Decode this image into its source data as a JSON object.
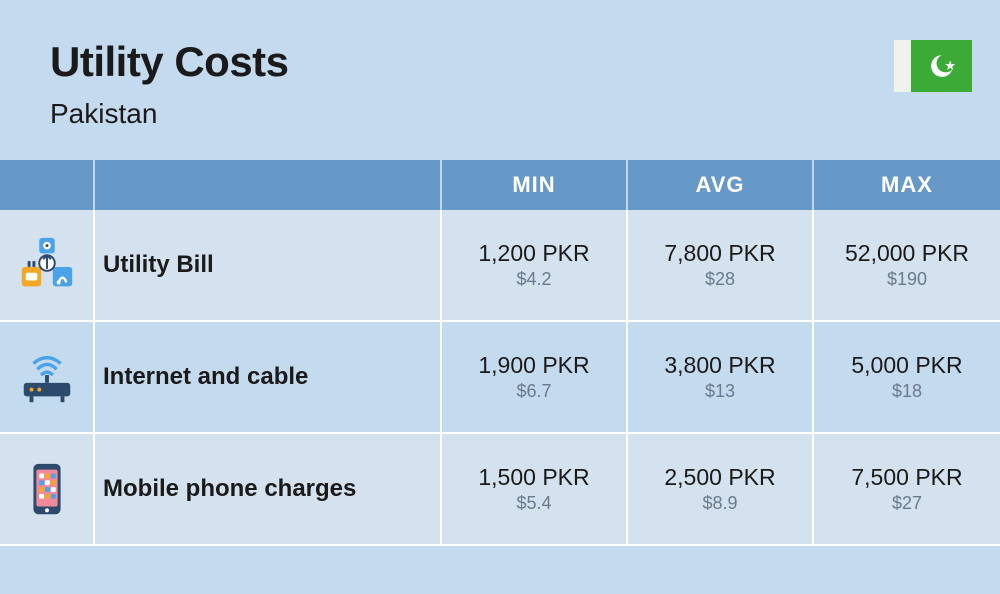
{
  "colors": {
    "page_bg": "#c4daee",
    "header_bg": "#c4daee",
    "thead_bg": "#6799c8",
    "thead_text": "#ffffff",
    "row_odd_bg": "#d4e1ee",
    "row_even_bg": "#c4daee",
    "text_primary": "#1a1a1a",
    "text_secondary": "#6b7a8a",
    "flag_white": "#f0f2ed",
    "flag_green": "#3caa36",
    "icon_blue": "#4aa3e8",
    "icon_orange": "#f5a623",
    "icon_dark": "#2c4a6b",
    "icon_pink": "#f08a9b"
  },
  "header": {
    "title": "Utility Costs",
    "subtitle": "Pakistan"
  },
  "table": {
    "columns": [
      "MIN",
      "AVG",
      "MAX"
    ],
    "rows": [
      {
        "icon": "utility-icon",
        "label": "Utility Bill",
        "values": [
          {
            "primary": "1,200 PKR",
            "secondary": "$4.2"
          },
          {
            "primary": "7,800 PKR",
            "secondary": "$28"
          },
          {
            "primary": "52,000 PKR",
            "secondary": "$190"
          }
        ]
      },
      {
        "icon": "router-icon",
        "label": "Internet and cable",
        "values": [
          {
            "primary": "1,900 PKR",
            "secondary": "$6.7"
          },
          {
            "primary": "3,800 PKR",
            "secondary": "$13"
          },
          {
            "primary": "5,000 PKR",
            "secondary": "$18"
          }
        ]
      },
      {
        "icon": "phone-icon",
        "label": "Mobile phone charges",
        "values": [
          {
            "primary": "1,500 PKR",
            "secondary": "$5.4"
          },
          {
            "primary": "2,500 PKR",
            "secondary": "$8.9"
          },
          {
            "primary": "7,500 PKR",
            "secondary": "$27"
          }
        ]
      }
    ]
  }
}
